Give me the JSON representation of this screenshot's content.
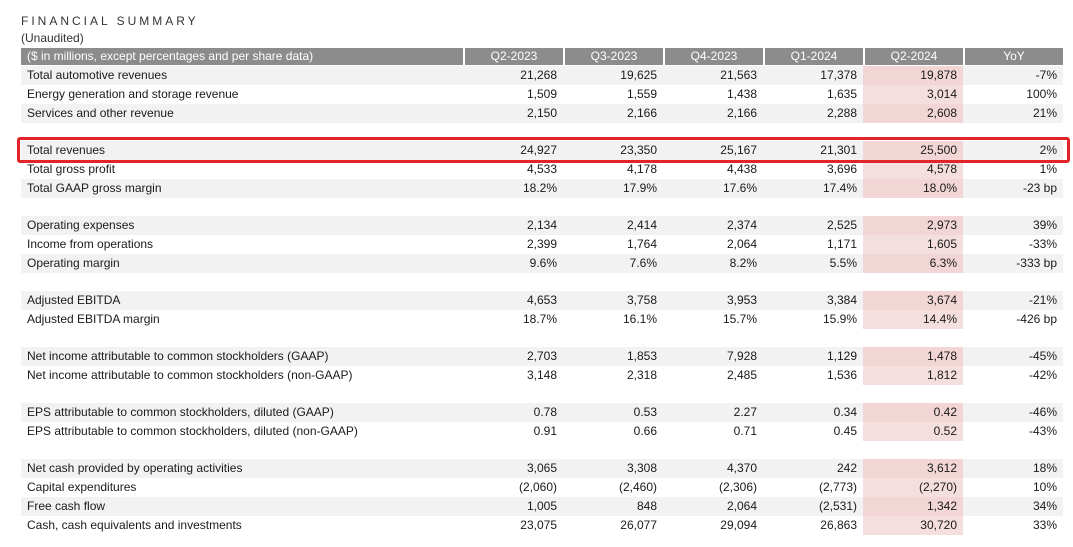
{
  "title": "FINANCIAL SUMMARY",
  "subtitle": "(Unaudited)",
  "header": {
    "label": "($ in millions, except percentages and per share data)",
    "columns": [
      "Q2-2023",
      "Q3-2023",
      "Q4-2023",
      "Q1-2024",
      "Q2-2024",
      "YoY"
    ]
  },
  "rows": [
    {
      "label": "Total automotive revenues",
      "values": [
        "21,268",
        "19,625",
        "21,563",
        "17,378",
        "19,878",
        "-7%"
      ],
      "group": 0
    },
    {
      "label": "Energy generation and storage revenue",
      "values": [
        "1,509",
        "1,559",
        "1,438",
        "1,635",
        "3,014",
        "100%"
      ],
      "group": 0
    },
    {
      "label": "Services and other revenue",
      "values": [
        "2,150",
        "2,166",
        "2,166",
        "2,288",
        "2,608",
        "21%"
      ],
      "group": 0
    },
    {
      "label": "Total revenues",
      "values": [
        "24,927",
        "23,350",
        "25,167",
        "21,301",
        "25,500",
        "2%"
      ],
      "group": 1,
      "highlighted": true
    },
    {
      "label": "Total gross profit",
      "values": [
        "4,533",
        "4,178",
        "4,438",
        "3,696",
        "4,578",
        "1%"
      ],
      "group": 1
    },
    {
      "label": "Total GAAP gross margin",
      "values": [
        "18.2%",
        "17.9%",
        "17.6%",
        "17.4%",
        "18.0%",
        "-23 bp"
      ],
      "group": 1
    },
    {
      "label": "Operating expenses",
      "values": [
        "2,134",
        "2,414",
        "2,374",
        "2,525",
        "2,973",
        "39%"
      ],
      "group": 2
    },
    {
      "label": "Income from operations",
      "values": [
        "2,399",
        "1,764",
        "2,064",
        "1,171",
        "1,605",
        "-33%"
      ],
      "group": 2
    },
    {
      "label": "Operating margin",
      "values": [
        "9.6%",
        "7.6%",
        "8.2%",
        "5.5%",
        "6.3%",
        "-333 bp"
      ],
      "group": 2
    },
    {
      "label": "Adjusted EBITDA",
      "values": [
        "4,653",
        "3,758",
        "3,953",
        "3,384",
        "3,674",
        "-21%"
      ],
      "group": 3
    },
    {
      "label": "Adjusted EBITDA margin",
      "values": [
        "18.7%",
        "16.1%",
        "15.7%",
        "15.9%",
        "14.4%",
        "-426 bp"
      ],
      "group": 3
    },
    {
      "label": "Net income attributable to common stockholders (GAAP)",
      "values": [
        "2,703",
        "1,853",
        "7,928",
        "1,129",
        "1,478",
        "-45%"
      ],
      "group": 4
    },
    {
      "label": "Net income attributable to common stockholders (non-GAAP)",
      "values": [
        "3,148",
        "2,318",
        "2,485",
        "1,536",
        "1,812",
        "-42%"
      ],
      "group": 4
    },
    {
      "label": "EPS attributable to common stockholders, diluted (GAAP)",
      "values": [
        "0.78",
        "0.53",
        "2.27",
        "0.34",
        "0.42",
        "-46%"
      ],
      "group": 5
    },
    {
      "label": "EPS attributable to common stockholders, diluted (non-GAAP)",
      "values": [
        "0.91",
        "0.66",
        "0.71",
        "0.45",
        "0.52",
        "-43%"
      ],
      "group": 5
    },
    {
      "label": "Net cash provided by operating activities",
      "values": [
        "3,065",
        "3,308",
        "4,370",
        "242",
        "3,612",
        "18%"
      ],
      "group": 6
    },
    {
      "label": "Capital expenditures",
      "values": [
        "(2,060)",
        "(2,460)",
        "(2,306)",
        "(2,773)",
        "(2,270)",
        "10%"
      ],
      "group": 6
    },
    {
      "label": "Free cash flow",
      "values": [
        "1,005",
        "848",
        "2,064",
        "(2,531)",
        "1,342",
        "34%"
      ],
      "group": 6
    },
    {
      "label": "Cash, cash equivalents and investments",
      "values": [
        "23,075",
        "26,077",
        "29,094",
        "26,863",
        "30,720",
        "33%"
      ],
      "group": 6
    }
  ],
  "colors": {
    "header_bg": "#8c8c8c",
    "row_shade": "#f2f2f2",
    "q2_2024_highlight": "#f5dede",
    "callout_border": "#e0242a"
  }
}
